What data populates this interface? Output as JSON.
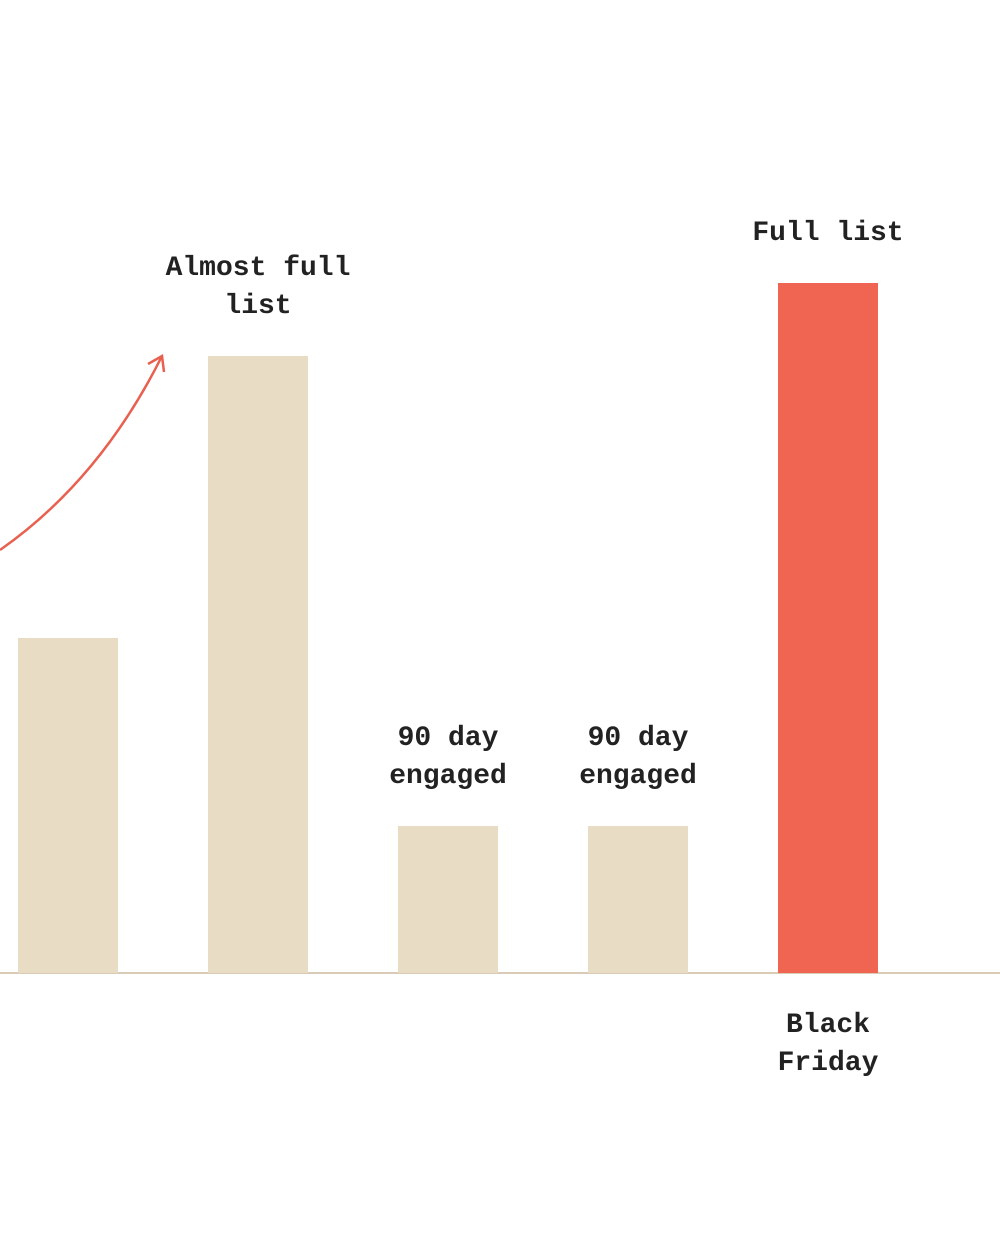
{
  "chart_data": {
    "type": "bar",
    "categories": [
      null,
      null,
      null,
      null,
      "Black Friday"
    ],
    "values": [
      335,
      617,
      147,
      147,
      690
    ],
    "bar_labels": [
      null,
      "Almost full list",
      "90 day engaged",
      "90 day engaged",
      "Full list"
    ],
    "colors": [
      "#e8dcc5",
      "#e8dcc5",
      "#e8dcc5",
      "#e8dcc5",
      "#f06552"
    ],
    "ylim": [
      0,
      973
    ]
  }
}
